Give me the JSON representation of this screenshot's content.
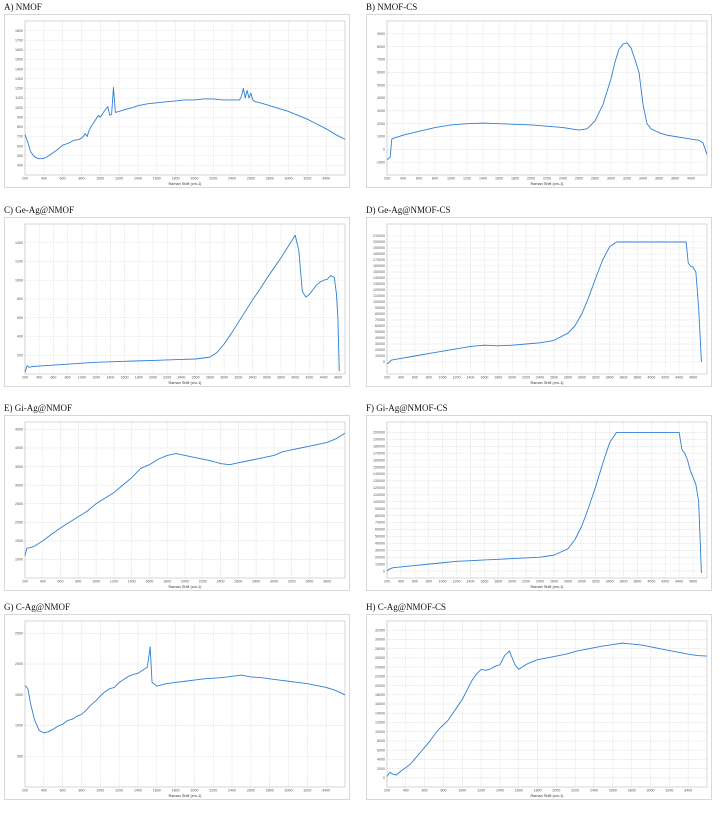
{
  "chart_data": [
    {
      "id": "A",
      "type": "line",
      "title": "A) NMOF",
      "xlabel": "Raman Shift (cm-1)",
      "xlim": [
        200,
        3600
      ],
      "ylim": [
        300,
        1900
      ],
      "xticks": [
        "200",
        "400",
        "600",
        "800",
        "1000",
        "1200",
        "1400",
        "1600",
        "1800",
        "2000",
        "2200",
        "2400",
        "2600",
        "2800",
        "3000",
        "3200",
        "3400"
      ],
      "yticks": [
        "400",
        "500",
        "600",
        "700",
        "800",
        "900",
        "1000",
        "1100",
        "1200",
        "1300",
        "1400",
        "1500",
        "1600",
        "1700",
        "1800"
      ],
      "x": [
        200,
        230,
        260,
        300,
        340,
        380,
        420,
        480,
        540,
        600,
        660,
        720,
        780,
        820,
        840,
        860,
        880,
        900,
        940,
        980,
        1000,
        1040,
        1080,
        1100,
        1120,
        1140,
        1160,
        1200,
        1260,
        1300,
        1340,
        1400,
        1500,
        1600,
        1700,
        1800,
        1900,
        2000,
        2100,
        2200,
        2300,
        2400,
        2480,
        2500,
        2520,
        2540,
        2560,
        2580,
        2600,
        2620,
        2650,
        2700,
        2800,
        2900,
        3000,
        3100,
        3200,
        3300,
        3400,
        3500,
        3600
      ],
      "values": [
        720,
        640,
        540,
        490,
        470,
        470,
        480,
        520,
        560,
        610,
        630,
        660,
        670,
        700,
        730,
        700,
        760,
        800,
        860,
        920,
        900,
        960,
        1010,
        920,
        930,
        1210,
        950,
        960,
        980,
        990,
        1000,
        1020,
        1040,
        1050,
        1060,
        1070,
        1080,
        1080,
        1090,
        1090,
        1080,
        1080,
        1080,
        1120,
        1200,
        1100,
        1180,
        1100,
        1150,
        1080,
        1060,
        1050,
        1020,
        990,
        960,
        920,
        880,
        830,
        780,
        720,
        670
      ]
    },
    {
      "id": "B",
      "type": "line",
      "title": "B) NMOF-CS",
      "xlabel": "Raman Shift (cm-1)",
      "xlim": [
        200,
        4200
      ],
      "ylim": [
        -2000,
        10000
      ],
      "xticks": [
        "200",
        "400",
        "600",
        "800",
        "1000",
        "1200",
        "1400",
        "1600",
        "1800",
        "2000",
        "2200",
        "2400",
        "2600",
        "2800",
        "3000",
        "3200",
        "3400",
        "3600",
        "3800",
        "4000"
      ],
      "yticks": [
        "-1000",
        "0",
        "1000",
        "2000",
        "3000",
        "4000",
        "5000",
        "6000",
        "7000",
        "8000",
        "9000"
      ],
      "x": [
        200,
        220,
        240,
        260,
        300,
        400,
        600,
        800,
        1000,
        1200,
        1400,
        1600,
        1800,
        2000,
        2200,
        2400,
        2600,
        2700,
        2800,
        2900,
        3000,
        3050,
        3100,
        3150,
        3200,
        3250,
        3300,
        3350,
        3400,
        3450,
        3500,
        3600,
        3700,
        3800,
        3900,
        4000,
        4100,
        4150,
        4200
      ],
      "values": [
        -800,
        -700,
        -600,
        800,
        900,
        1100,
        1400,
        1700,
        1900,
        2000,
        2050,
        2000,
        1950,
        1900,
        1800,
        1700,
        1500,
        1600,
        2200,
        3500,
        5500,
        6800,
        7800,
        8200,
        8300,
        7900,
        7000,
        6000,
        3500,
        2000,
        1600,
        1300,
        1100,
        1000,
        900,
        800,
        700,
        500,
        -400
      ]
    },
    {
      "id": "C",
      "type": "line",
      "title": "C) Ge-Ag@NMOF",
      "xlabel": "Raman Shift (cm-1)",
      "xlim": [
        200,
        4700
      ],
      "ylim": [
        0,
        1600
      ],
      "xticks": [
        "200",
        "400",
        "600",
        "800",
        "1000",
        "1200",
        "1400",
        "1600",
        "1800",
        "2000",
        "2200",
        "2400",
        "2600",
        "2800",
        "3000",
        "3200",
        "3400",
        "3600",
        "3800",
        "4000",
        "4200",
        "4400",
        "4600"
      ],
      "yticks": [
        "200",
        "400",
        "600",
        "800",
        "1000",
        "1200",
        "1400"
      ],
      "x": [
        200,
        230,
        260,
        300,
        400,
        600,
        800,
        1000,
        1200,
        1400,
        1600,
        1800,
        2000,
        2200,
        2400,
        2600,
        2800,
        2900,
        3000,
        3100,
        3200,
        3300,
        3400,
        3500,
        3600,
        3700,
        3800,
        3900,
        4000,
        4050,
        4100,
        4150,
        4200,
        4250,
        4300,
        4350,
        4400,
        4450,
        4500,
        4550,
        4580,
        4600,
        4620
      ],
      "values": [
        20,
        90,
        70,
        80,
        85,
        95,
        105,
        115,
        125,
        130,
        135,
        140,
        145,
        150,
        155,
        160,
        180,
        230,
        320,
        430,
        550,
        670,
        790,
        900,
        1020,
        1130,
        1240,
        1360,
        1480,
        1320,
        880,
        820,
        850,
        900,
        950,
        980,
        1000,
        1010,
        1050,
        1030,
        850,
        600,
        30
      ]
    },
    {
      "id": "D",
      "type": "line",
      "title": "D) Ge-Ag@NMOF-CS",
      "xlabel": "Raman Shift (cm-1)",
      "xlim": [
        200,
        4800
      ],
      "ylim": [
        -20000,
        230000
      ],
      "xticks": [
        "200",
        "400",
        "600",
        "800",
        "1000",
        "1200",
        "1400",
        "1600",
        "1800",
        "2000",
        "2200",
        "2400",
        "2600",
        "2800",
        "3000",
        "3200",
        "3400",
        "3600",
        "3800",
        "4000",
        "4200",
        "4400",
        "4600"
      ],
      "yticks": [
        "0",
        "10000",
        "20000",
        "30000",
        "40000",
        "50000",
        "60000",
        "70000",
        "80000",
        "90000",
        "100000",
        "110000",
        "120000",
        "130000",
        "140000",
        "150000",
        "160000",
        "170000",
        "180000",
        "190000",
        "200000",
        "210000"
      ],
      "x": [
        200,
        220,
        260,
        300,
        400,
        600,
        800,
        1000,
        1200,
        1400,
        1600,
        1800,
        2000,
        2200,
        2400,
        2600,
        2800,
        2900,
        3000,
        3100,
        3200,
        3300,
        3400,
        3500,
        3540,
        3600,
        3800,
        4000,
        4200,
        4400,
        4500,
        4530,
        4560,
        4600,
        4640,
        4680,
        4720
      ],
      "values": [
        -2000,
        -2000,
        3000,
        4000,
        6000,
        10000,
        14000,
        18000,
        22000,
        26000,
        28000,
        27000,
        28000,
        30000,
        32000,
        36000,
        48000,
        60000,
        80000,
        108000,
        140000,
        170000,
        192000,
        200000,
        200000,
        200000,
        200000,
        200000,
        200000,
        200000,
        200000,
        165000,
        160000,
        158000,
        150000,
        90000,
        0
      ]
    },
    {
      "id": "E",
      "type": "line",
      "title": "E) Gi-Ag@NMOF",
      "xlabel": "Raman Shift (cm-1)",
      "xlim": [
        200,
        3800
      ],
      "ylim": [
        500,
        4700
      ],
      "xticks": [
        "200",
        "400",
        "600",
        "800",
        "1000",
        "1200",
        "1400",
        "1600",
        "1800",
        "2000",
        "2200",
        "2400",
        "2600",
        "2800",
        "3000",
        "3200",
        "3400",
        "3600"
      ],
      "yticks": [
        "1000",
        "1500",
        "2000",
        "2500",
        "3000",
        "3500",
        "4000",
        "4500"
      ],
      "x": [
        200,
        220,
        260,
        300,
        400,
        500,
        600,
        700,
        800,
        900,
        1000,
        1100,
        1200,
        1300,
        1400,
        1500,
        1550,
        1600,
        1700,
        1800,
        1900,
        2000,
        2100,
        2200,
        2300,
        2400,
        2500,
        2600,
        2700,
        2800,
        2900,
        3000,
        3100,
        3200,
        3300,
        3400,
        3500,
        3600,
        3700,
        3800
      ],
      "values": [
        1100,
        1300,
        1320,
        1350,
        1500,
        1680,
        1850,
        2000,
        2150,
        2300,
        2500,
        2650,
        2800,
        3000,
        3200,
        3450,
        3500,
        3550,
        3700,
        3800,
        3850,
        3800,
        3750,
        3700,
        3650,
        3580,
        3550,
        3600,
        3650,
        3700,
        3750,
        3800,
        3900,
        3950,
        4000,
        4050,
        4100,
        4150,
        4250,
        4400
      ]
    },
    {
      "id": "F",
      "type": "line",
      "title": "F) Gi-Ag@NMOF-CS",
      "xlabel": "Raman Shift (cm-1)",
      "xlim": [
        200,
        4800
      ],
      "ylim": [
        -10000,
        215000
      ],
      "xticks": [
        "200",
        "400",
        "600",
        "800",
        "1000",
        "1200",
        "1400",
        "1600",
        "1800",
        "2000",
        "2200",
        "2400",
        "2600",
        "2800",
        "3000",
        "3200",
        "3400",
        "3600",
        "3800",
        "4000",
        "4200",
        "4400",
        "4600"
      ],
      "yticks": [
        "0",
        "10000",
        "20000",
        "30000",
        "40000",
        "50000",
        "60000",
        "70000",
        "80000",
        "90000",
        "100000",
        "110000",
        "120000",
        "130000",
        "140000",
        "150000",
        "160000",
        "170000",
        "180000",
        "190000",
        "200000"
      ],
      "x": [
        200,
        220,
        260,
        300,
        400,
        600,
        800,
        1000,
        1200,
        1400,
        1600,
        1800,
        2000,
        2200,
        2400,
        2600,
        2800,
        2900,
        3000,
        3100,
        3200,
        3300,
        3400,
        3500,
        3600,
        3700,
        3800,
        4000,
        4200,
        4400,
        4440,
        4480,
        4520,
        4560,
        4600,
        4640,
        4680,
        4720
      ],
      "values": [
        0,
        2000,
        4000,
        5000,
        6000,
        8000,
        10000,
        12000,
        14000,
        15000,
        16000,
        17000,
        18000,
        19000,
        20000,
        23000,
        32000,
        45000,
        65000,
        92000,
        122000,
        155000,
        185000,
        200000,
        200000,
        200000,
        200000,
        200000,
        200000,
        200000,
        175000,
        170000,
        160000,
        145000,
        135000,
        125000,
        100000,
        -3000
      ]
    },
    {
      "id": "G",
      "type": "line",
      "title": "G) C-Ag@NMOF",
      "xlabel": "Raman Shift (cm-1)",
      "xlim": [
        200,
        3600
      ],
      "ylim": [
        0,
        2700
      ],
      "xticks": [
        "200",
        "400",
        "600",
        "800",
        "1000",
        "1200",
        "1400",
        "1600",
        "1800",
        "2000",
        "2200",
        "2400",
        "2600",
        "2800",
        "3000",
        "3200",
        "3400"
      ],
      "yticks": [
        "500",
        "1000",
        "1500",
        "2000",
        "2500"
      ],
      "x": [
        200,
        230,
        260,
        300,
        350,
        400,
        450,
        500,
        550,
        600,
        650,
        700,
        750,
        800,
        850,
        900,
        950,
        1000,
        1050,
        1100,
        1150,
        1200,
        1250,
        1300,
        1350,
        1400,
        1450,
        1500,
        1530,
        1550,
        1570,
        1600,
        1650,
        1700,
        1800,
        1900,
        2000,
        2100,
        2200,
        2300,
        2400,
        2500,
        2600,
        2700,
        2800,
        2900,
        3000,
        3100,
        3200,
        3300,
        3400,
        3500,
        3600
      ],
      "values": [
        1650,
        1600,
        1350,
        1100,
        920,
        880,
        900,
        940,
        990,
        1020,
        1080,
        1100,
        1150,
        1180,
        1250,
        1330,
        1400,
        1480,
        1550,
        1600,
        1620,
        1700,
        1750,
        1800,
        1830,
        1850,
        1900,
        1950,
        2280,
        1700,
        1680,
        1640,
        1660,
        1680,
        1700,
        1720,
        1740,
        1760,
        1770,
        1780,
        1800,
        1820,
        1790,
        1780,
        1760,
        1740,
        1720,
        1700,
        1680,
        1650,
        1620,
        1570,
        1500
      ]
    },
    {
      "id": "H",
      "type": "line",
      "title": "H) C-Ag@NMOF-CS",
      "xlabel": "Raman Shift (cm-1)",
      "xlim": [
        200,
        3600
      ],
      "ylim": [
        -2000,
        34000
      ],
      "xticks": [
        "200",
        "400",
        "600",
        "800",
        "1000",
        "1200",
        "1400",
        "1600",
        "1800",
        "2000",
        "2200",
        "2400",
        "2600",
        "2800",
        "3000",
        "3200",
        "3400"
      ],
      "yticks": [
        "0",
        "2000",
        "4000",
        "6000",
        "8000",
        "10000",
        "12000",
        "14000",
        "16000",
        "18000",
        "20000",
        "22000",
        "24000",
        "26000",
        "28000",
        "30000",
        "32000"
      ],
      "x": [
        200,
        230,
        260,
        300,
        350,
        400,
        450,
        500,
        550,
        600,
        650,
        700,
        750,
        800,
        850,
        900,
        950,
        1000,
        1050,
        1100,
        1150,
        1200,
        1250,
        1300,
        1350,
        1400,
        1450,
        1500,
        1530,
        1560,
        1600,
        1650,
        1700,
        1750,
        1800,
        1900,
        2000,
        2100,
        2200,
        2300,
        2400,
        2500,
        2600,
        2700,
        2800,
        2900,
        3000,
        3100,
        3200,
        3300,
        3400,
        3500,
        3600
      ],
      "values": [
        300,
        1200,
        800,
        600,
        1500,
        2200,
        3000,
        4200,
        5400,
        6600,
        7800,
        9200,
        10500,
        11500,
        12500,
        14000,
        15500,
        17000,
        19000,
        21000,
        22500,
        23500,
        23300,
        23600,
        24200,
        24500,
        26500,
        27500,
        26000,
        24500,
        23500,
        24200,
        24800,
        25200,
        25600,
        26000,
        26400,
        26800,
        27400,
        27800,
        28200,
        28600,
        28900,
        29200,
        29000,
        28800,
        28400,
        28000,
        27600,
        27200,
        26800,
        26500,
        26400
      ]
    }
  ]
}
